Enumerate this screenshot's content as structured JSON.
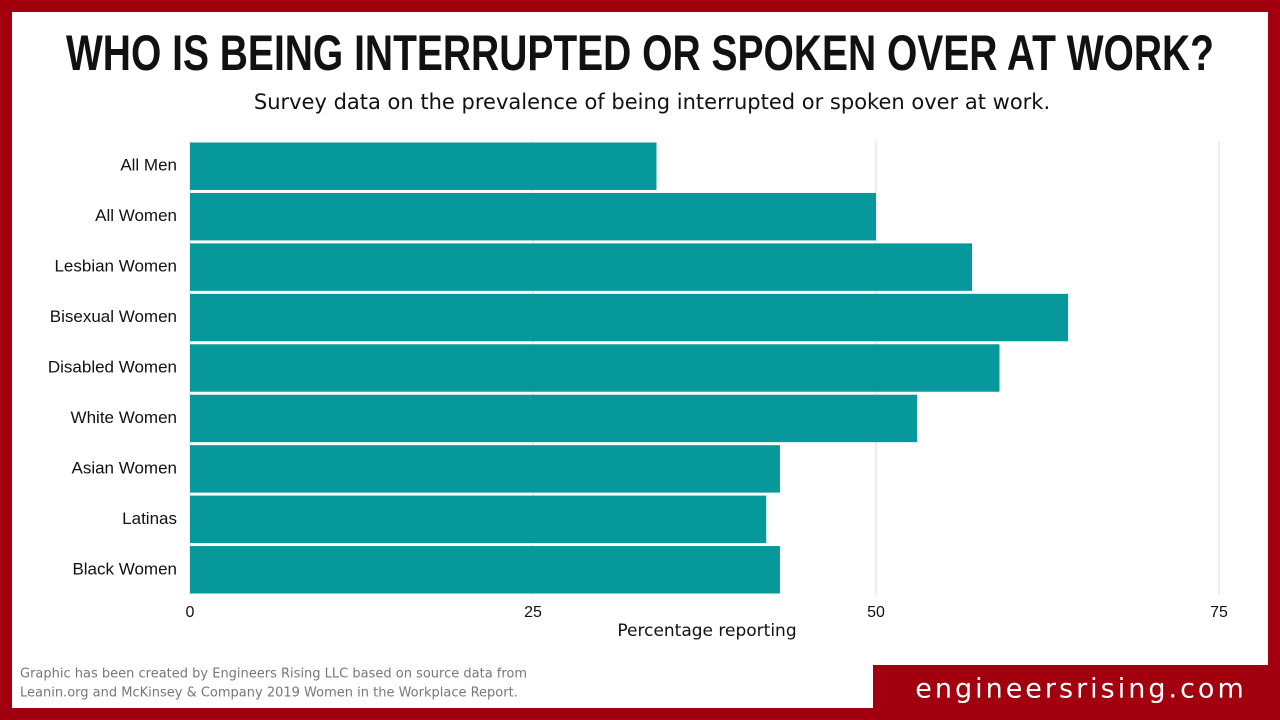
{
  "chart_data": {
    "type": "barh",
    "title": "WHO IS BEING INTERRUPTED OR SPOKEN OVER AT WORK?",
    "subtitle": "Survey data on the prevalence of being interrupted or spoken over at work.",
    "categories": [
      "All Men",
      "All Women",
      "Lesbian Women",
      "Bisexual Women",
      "Disabled Women",
      "White Women",
      "Asian Women",
      "Latinas",
      "Black Women"
    ],
    "values": [
      34,
      50,
      57,
      64,
      59,
      53,
      43,
      42,
      43
    ],
    "color": "#07989c",
    "xlabel": "Percentage reporting",
    "xlim": [
      0,
      75
    ],
    "xticks": [
      0,
      25,
      50,
      75
    ],
    "grid": true
  },
  "source_note": [
    "Graphic has been created by Engineers Rising LLC based on source data from",
    "Leanin.org and McKinsey & Company 2019 Women in the Workplace Report."
  ],
  "brand": "engineersrising.com"
}
